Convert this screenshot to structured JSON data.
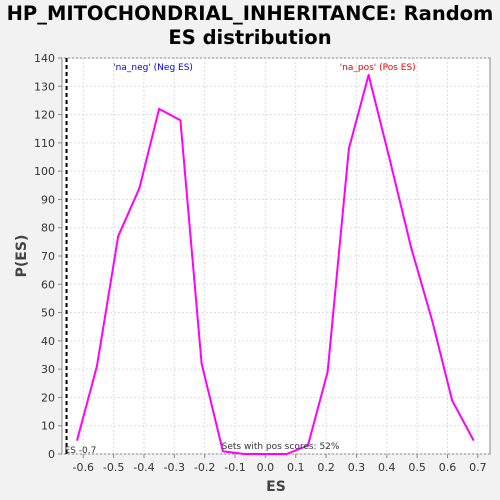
{
  "chart_data": {
    "type": "line",
    "title_lines": [
      "HP_MITOCHONDRIAL_INHERITANCE: Random",
      "ES distribution"
    ],
    "xlabel": "ES",
    "ylabel": "P(ES)",
    "xlim": [
      -0.67,
      0.74
    ],
    "ylim": [
      0,
      140
    ],
    "xticks": [
      -0.6,
      -0.5,
      -0.4,
      -0.3,
      -0.2,
      -0.1,
      0.0,
      0.1,
      0.2,
      0.3,
      0.4,
      0.5,
      0.6,
      0.7
    ],
    "xtick_labels": [
      "-0.6",
      "-0.5",
      "-0.4",
      "-0.3",
      "-0.2",
      "-0.1",
      "0.0",
      "0.1",
      "0.2",
      "0.3",
      "0.4",
      "0.5",
      "0.6",
      "0.7"
    ],
    "yticks": [
      0,
      10,
      20,
      30,
      40,
      50,
      60,
      70,
      80,
      90,
      100,
      110,
      120,
      130,
      140
    ],
    "ytick_labels": [
      "0",
      "10",
      "20",
      "30",
      "40",
      "50",
      "60",
      "70",
      "80",
      "90",
      "100",
      "110",
      "120",
      "130",
      "140"
    ],
    "grid": true,
    "series": [
      {
        "color": "#ff00ff",
        "x": [
          -0.62,
          -0.555,
          -0.485,
          -0.415,
          -0.35,
          -0.28,
          -0.21,
          -0.14,
          -0.07,
          0.0,
          0.07,
          0.14,
          0.205,
          0.275,
          0.34,
          0.41,
          0.48,
          0.55,
          0.615,
          0.685
        ],
        "y": [
          5,
          31,
          77,
          94,
          122,
          118,
          32,
          1,
          0,
          0,
          0,
          3,
          29,
          108,
          134,
          104,
          73,
          47,
          19,
          5
        ]
      }
    ],
    "vline": {
      "x": -0.655,
      "label": "ES -0.7"
    },
    "annotations": {
      "neg": {
        "text": "'na_neg' (Neg ES)",
        "x": -0.37,
        "y": 135,
        "color": "#0000ee"
      },
      "pos": {
        "text": "'na_pos' (Pos ES)",
        "x": 0.37,
        "y": 135,
        "color": "#ee0000"
      },
      "pos_scores": {
        "text": "Sets with pos scores: 52%",
        "x": 0.05,
        "y": 1,
        "color": "#333333"
      }
    }
  }
}
